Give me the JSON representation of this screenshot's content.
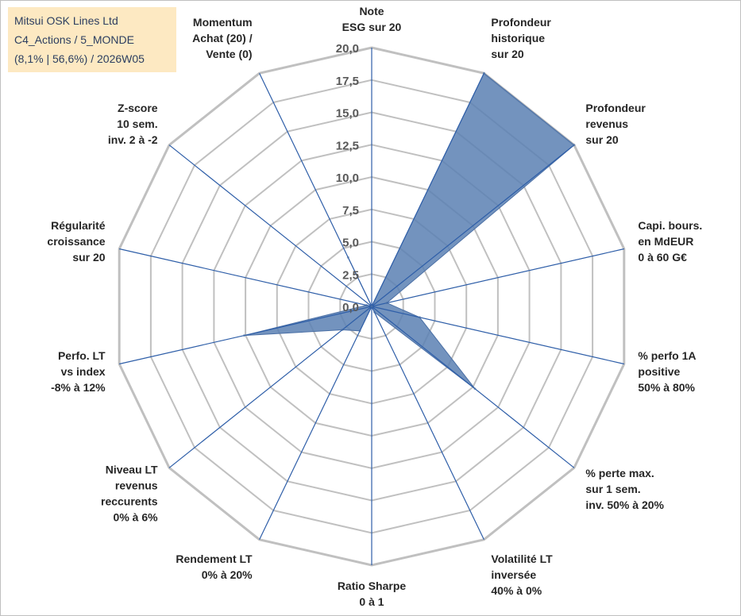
{
  "header": {
    "company": "Mitsui OSK Lines Ltd",
    "category": "C4_Actions / 5_MONDE",
    "stats": "(8,1% | 56,6%) / 2026W05"
  },
  "colors": {
    "fill": "#5b80b3",
    "grid": "#c0c0c0",
    "spoke": "#2e5ea8",
    "infobox": "#fde9c2"
  },
  "chart_data": {
    "type": "radar",
    "title": "Mitsui OSK Lines Ltd",
    "rlim": [
      0,
      20
    ],
    "tick_values": [
      0,
      2.5,
      5,
      7.5,
      10,
      12.5,
      15,
      17.5,
      20
    ],
    "tick_labels": [
      "0,0",
      "2,5",
      "5,0",
      "7,5",
      "10,0",
      "12,5",
      "15,0",
      "17,5",
      "20,0"
    ],
    "axes": [
      {
        "label": [
          "Note",
          "ESG sur 20"
        ],
        "value": 0
      },
      {
        "label": [
          "Profondeur",
          "historique",
          "sur 20"
        ],
        "value": 20
      },
      {
        "label": [
          "Profondeur",
          "revenus",
          "sur 20"
        ],
        "value": 20
      },
      {
        "label": [
          "Capi. bours.",
          "en MdEUR",
          "0 à 60 G€"
        ],
        "value": 1.2
      },
      {
        "label": [
          "% perfo 1A",
          "positive",
          "50% à 80%"
        ],
        "value": 3.8
      },
      {
        "label": [
          "% perte max.",
          "sur 1 sem.",
          "inv. 50% à 20%"
        ],
        "value": 10.2
      },
      {
        "label": [
          "Volatilité LT",
          "inversée",
          "40% à 0%"
        ],
        "value": 0.5
      },
      {
        "label": [
          "Ratio Sharpe",
          "0 à 1"
        ],
        "value": 0
      },
      {
        "label": [
          "Rendement LT",
          "0% à 20%"
        ],
        "value": 2.1
      },
      {
        "label": [
          "Niveau LT",
          "revenus",
          "reccurents",
          "0% à 6%"
        ],
        "value": 2.9
      },
      {
        "label": [
          "Perfo. LT",
          "vs index",
          "-8% à 12%"
        ],
        "value": 10.1
      },
      {
        "label": [
          "Régularité",
          "croissance",
          "sur 20"
        ],
        "value": 0.4
      },
      {
        "label": [
          "Z-score",
          "10 sem.",
          "inv. 2 à -2"
        ],
        "value": 0
      },
      {
        "label": [
          "Momentum",
          "Achat (20) /",
          "Vente (0)"
        ],
        "value": 4.2
      }
    ]
  }
}
